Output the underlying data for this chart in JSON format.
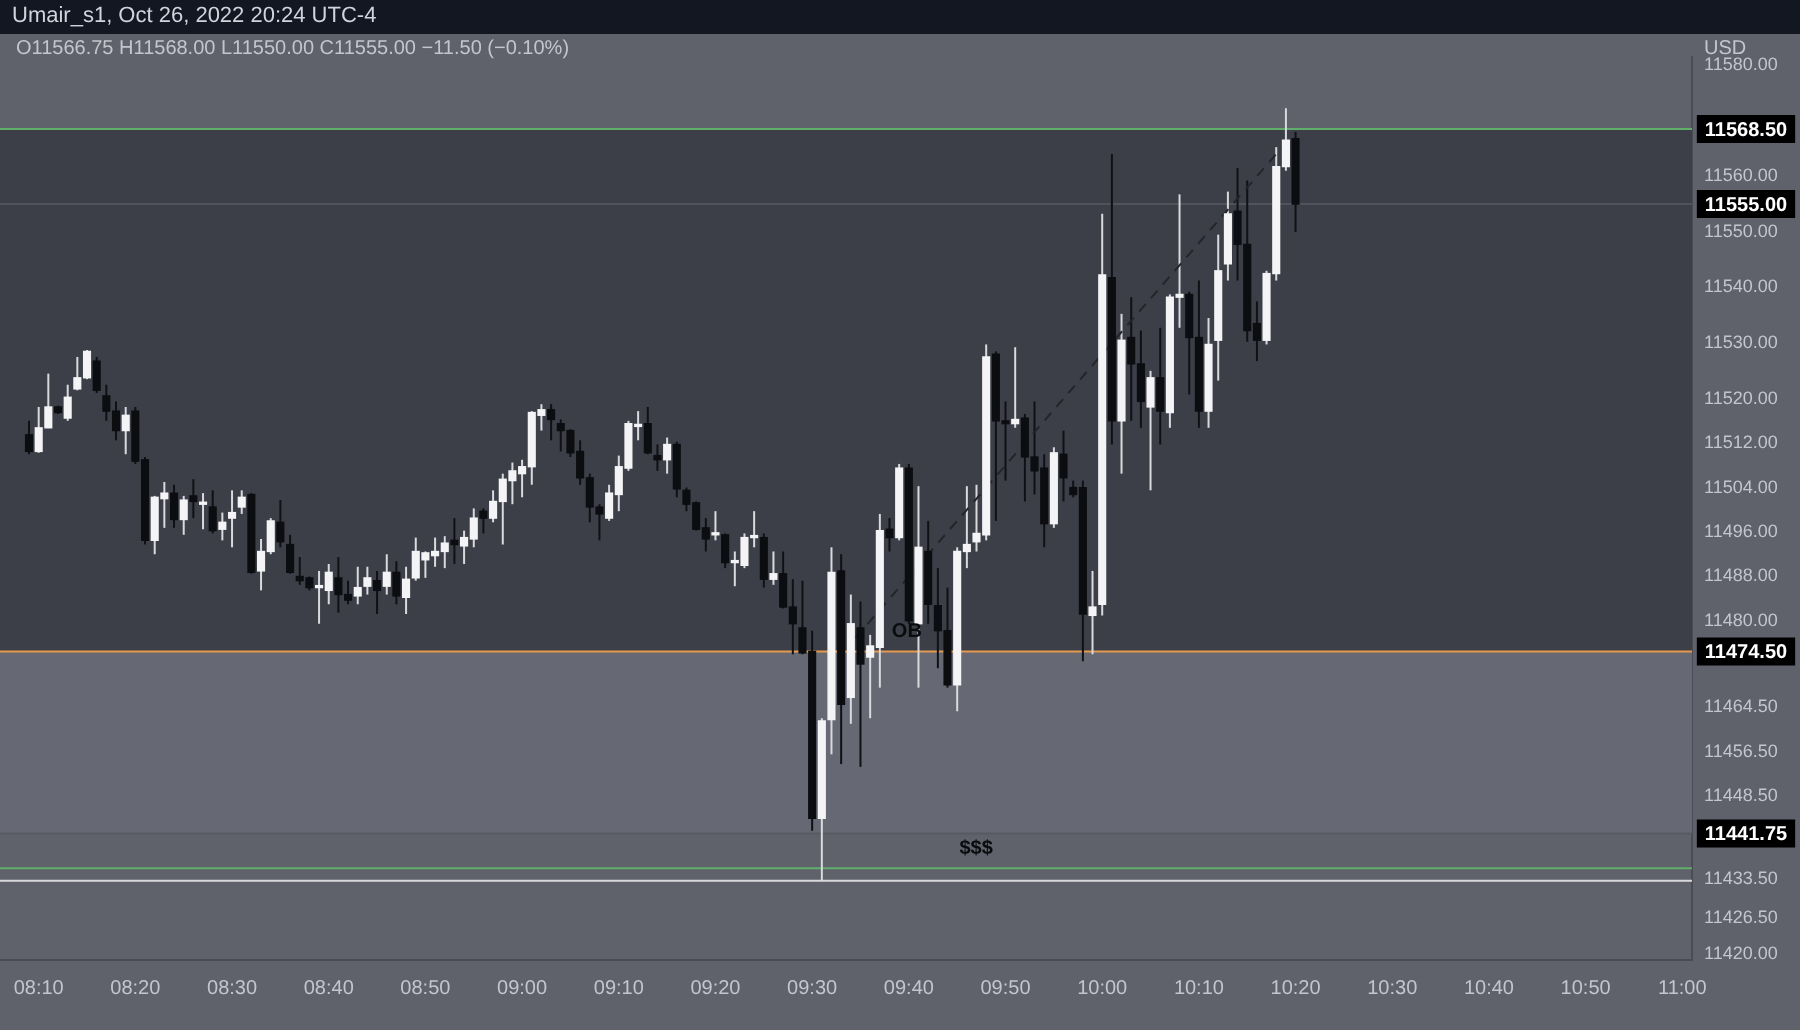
{
  "chart_data": {
    "type": "candlestick",
    "title": "Umair_s1, Oct 26, 2022 20:24 UTC-4",
    "subtitle": "O11566.75 H11568.00 L11550.00 C11555.00 −11.50 (−0.10%)",
    "ylabel": "USD",
    "x": [
      8.15,
      8.1667,
      8.1833,
      8.2,
      8.2167,
      8.2333,
      8.25,
      8.2667,
      8.2833,
      8.3,
      8.3167,
      8.3333,
      8.35,
      8.3667,
      8.3833,
      8.4,
      8.4167,
      8.4333,
      8.45,
      8.4667,
      8.4833,
      8.5,
      8.5167,
      8.5333,
      8.55,
      8.5667,
      8.5833,
      8.6,
      8.6167,
      8.6333,
      8.65,
      8.6667,
      8.6833,
      8.7,
      8.7167,
      8.7333,
      8.75,
      8.7667,
      8.7833,
      8.8,
      8.8167,
      8.8333,
      8.85,
      8.8667,
      8.8833,
      8.9,
      8.9167,
      8.9333,
      8.95,
      8.9667,
      8.9833,
      9,
      9.0167,
      9.0333,
      9.05,
      9.0667,
      9.0833,
      9.1,
      9.1167,
      9.1333,
      9.15,
      9.1667,
      9.1833,
      9.2,
      9.2167,
      9.2333,
      9.25,
      9.2667,
      9.2833,
      9.3,
      9.3167,
      9.3333,
      9.35,
      9.3667,
      9.3833,
      9.4,
      9.4167,
      9.4333,
      9.45,
      9.4667,
      9.4833,
      9.5,
      9.5167,
      9.5333,
      9.55,
      9.5667,
      9.5833,
      9.6,
      9.6167,
      9.6333,
      9.65,
      9.6667,
      9.6833,
      9.7,
      9.7167,
      9.7333,
      9.75,
      9.7667,
      9.7833,
      9.8,
      9.8167,
      9.8333,
      9.85,
      9.8667,
      9.8833,
      9.9,
      9.9167,
      9.9333,
      9.95,
      9.9667,
      9.9833,
      10,
      10.0167,
      10.0333,
      10.05,
      10.0667,
      10.0833,
      10.1,
      10.1167,
      10.1333,
      10.15,
      10.1667,
      10.1833,
      10.2,
      10.2167,
      10.2333,
      10.25,
      10.2667,
      10.2833,
      10.3,
      10.3167,
      10.3333
    ],
    "ohlc": [
      [
        11513.5,
        11516,
        11510,
        11510.5
      ],
      [
        11510.5,
        11518.5,
        11510.25,
        11514.75
      ],
      [
        11514.75,
        11524.5,
        11514.75,
        11518.5
      ],
      [
        11518.5,
        11518.75,
        11517.25,
        11517.5
      ],
      [
        11516.5,
        11522.5,
        11516,
        11520.25
      ],
      [
        11521.75,
        11527.5,
        11521.5,
        11523.75
      ],
      [
        11523.75,
        11528.75,
        11523.5,
        11528.5
      ],
      [
        11526.75,
        11527.5,
        11521,
        11521.5
      ],
      [
        11520.5,
        11522.5,
        11516,
        11517.75
      ],
      [
        11517.75,
        11519.5,
        11512.5,
        11514.25
      ],
      [
        11514.25,
        11518.5,
        11510,
        11517
      ],
      [
        11517.75,
        11518.5,
        11508.25,
        11508.75
      ],
      [
        11509,
        11509.5,
        11493.75,
        11494.5
      ],
      [
        11494.5,
        11502.5,
        11492,
        11502.25
      ],
      [
        11502,
        11505,
        11496.75,
        11503
      ],
      [
        11503,
        11504.5,
        11496.75,
        11498.25
      ],
      [
        11498.25,
        11502.5,
        11495.5,
        11501.75
      ],
      [
        11502.5,
        11505.5,
        11498.5,
        11501.5
      ],
      [
        11501,
        11503,
        11496.5,
        11501
      ],
      [
        11500.5,
        11503.5,
        11495.75,
        11496.25
      ],
      [
        11496.5,
        11499.5,
        11494.5,
        11497.75
      ],
      [
        11498.5,
        11503.5,
        11493.25,
        11499.5
      ],
      [
        11500.5,
        11503.5,
        11499.25,
        11502.25
      ],
      [
        11502.75,
        11503,
        11488.5,
        11488.75
      ],
      [
        11489,
        11494.75,
        11485.5,
        11492.5
      ],
      [
        11492.5,
        11498.5,
        11492,
        11498
      ],
      [
        11497.75,
        11501.75,
        11493.25,
        11494.25
      ],
      [
        11493.75,
        11495.5,
        11488.5,
        11488.75
      ],
      [
        11488,
        11491.5,
        11486.5,
        11487.25
      ],
      [
        11487.75,
        11488,
        11485.5,
        11486
      ],
      [
        11486,
        11489,
        11479.5,
        11486
      ],
      [
        11485.5,
        11490.25,
        11483,
        11488.75
      ],
      [
        11487.75,
        11491.5,
        11481.5,
        11484.75
      ],
      [
        11484.75,
        11487.25,
        11483,
        11483.75
      ],
      [
        11484.5,
        11489.75,
        11483,
        11486
      ],
      [
        11486.25,
        11489.75,
        11484.75,
        11487.75
      ],
      [
        11487.25,
        11489,
        11481.25,
        11485.5
      ],
      [
        11486.25,
        11492,
        11484.75,
        11488.75
      ],
      [
        11488.75,
        11490.75,
        11483,
        11484.5
      ],
      [
        11484.25,
        11489.75,
        11481.25,
        11487.5
      ],
      [
        11487.75,
        11495,
        11487.25,
        11492.5
      ],
      [
        11491,
        11492.5,
        11487.75,
        11492.25
      ],
      [
        11491.75,
        11495,
        11489.75,
        11492.5
      ],
      [
        11492.5,
        11495.25,
        11489.5,
        11494
      ],
      [
        11494.5,
        11498.5,
        11490.25,
        11493.75
      ],
      [
        11493.5,
        11496.25,
        11490.25,
        11495
      ],
      [
        11494.75,
        11500.25,
        11493.25,
        11498.5
      ],
      [
        11499.75,
        11500.25,
        11495.75,
        11498.5
      ],
      [
        11498.5,
        11503.5,
        11497.75,
        11501.5
      ],
      [
        11501.5,
        11506.5,
        11493.75,
        11505.5
      ],
      [
        11505.25,
        11508.5,
        11501,
        11507
      ],
      [
        11506.5,
        11509,
        11502.25,
        11507.75
      ],
      [
        11507.75,
        11517.75,
        11504.5,
        11517.5
      ],
      [
        11517,
        11519,
        11514.25,
        11518
      ],
      [
        11518,
        11519,
        11512.5,
        11516.25
      ],
      [
        11515.5,
        11516.25,
        11510.5,
        11514.25
      ],
      [
        11514.25,
        11514.5,
        11509.5,
        11510.25
      ],
      [
        11510.5,
        11512.5,
        11504.5,
        11505.75
      ],
      [
        11505.75,
        11506.5,
        11497.75,
        11500.5
      ],
      [
        11500.5,
        11501,
        11494.5,
        11499.25
      ],
      [
        11498.5,
        11504.5,
        11498,
        11503
      ],
      [
        11502.75,
        11509.75,
        11499.75,
        11507.75
      ],
      [
        11507.5,
        11516,
        11507,
        11515.5
      ],
      [
        11515,
        11517.75,
        11512.5,
        11515
      ],
      [
        11515.5,
        11518.5,
        11510,
        11510.25
      ],
      [
        11509.75,
        11511.75,
        11507,
        11509
      ],
      [
        11509,
        11513,
        11506.5,
        11511.75
      ],
      [
        11511.75,
        11512.25,
        11502.25,
        11503.75
      ],
      [
        11503.5,
        11504,
        11499.75,
        11501
      ],
      [
        11501.25,
        11501.5,
        11496.25,
        11496.5
      ],
      [
        11496.75,
        11498.5,
        11492.5,
        11494.75
      ],
      [
        11495.5,
        11499.75,
        11494.5,
        11495.5
      ],
      [
        11495.5,
        11495.75,
        11489.5,
        11490.5
      ],
      [
        11490.5,
        11492.5,
        11486.25,
        11490.5
      ],
      [
        11490,
        11495.75,
        11489.5,
        11495
      ],
      [
        11495,
        11499.75,
        11493.25,
        11495
      ],
      [
        11495,
        11495.75,
        11486,
        11487.5
      ],
      [
        11487.5,
        11492.5,
        11486.5,
        11488.5
      ],
      [
        11488.5,
        11492.5,
        11482.25,
        11482.5
      ],
      [
        11482.5,
        11487.5,
        11474,
        11479.5
      ],
      [
        11478.75,
        11487.25,
        11474,
        11474.25
      ],
      [
        11474.5,
        11478.25,
        11442.25,
        11444.5
      ],
      [
        11444.5,
        11462.5,
        11433.25,
        11462
      ],
      [
        11462.25,
        11493.25,
        11456,
        11488.75
      ],
      [
        11489,
        11492,
        11454.25,
        11465
      ],
      [
        11466.25,
        11484.75,
        11461.5,
        11479.5
      ],
      [
        11478.75,
        11483.5,
        11453.75,
        11472.25
      ],
      [
        11473.5,
        11477.5,
        11462.5,
        11475.5
      ],
      [
        11475.25,
        11499.25,
        11468,
        11496.25
      ],
      [
        11496.5,
        11498.5,
        11492.5,
        11495
      ],
      [
        11495,
        11508.25,
        11494.5,
        11507.5
      ],
      [
        11507.5,
        11508.25,
        11479.5,
        11480
      ],
      [
        11479.5,
        11504.25,
        11468,
        11493.25
      ],
      [
        11492.5,
        11498,
        11479.5,
        11483
      ],
      [
        11482.75,
        11489.5,
        11471.5,
        11478.25
      ],
      [
        11478.25,
        11486,
        11468,
        11468.5
      ],
      [
        11468.5,
        11493.25,
        11463.75,
        11492.5
      ],
      [
        11492.5,
        11504.25,
        11489.5,
        11493.75
      ],
      [
        11494.25,
        11504.5,
        11492.5,
        11495.75
      ],
      [
        11495.5,
        11529.75,
        11494.5,
        11527.5
      ],
      [
        11528,
        11528.5,
        11498,
        11516
      ],
      [
        11516,
        11519.5,
        11505.25,
        11515.5
      ],
      [
        11515.5,
        11529.25,
        11514.75,
        11516.25
      ],
      [
        11516.5,
        11517.25,
        11501.5,
        11509.5
      ],
      [
        11509.5,
        11519.5,
        11502.75,
        11507
      ],
      [
        11507.5,
        11510,
        11493.25,
        11497.5
      ],
      [
        11497.5,
        11511.25,
        11496.75,
        11510.25
      ],
      [
        11510,
        11514.25,
        11501.5,
        11505.75
      ],
      [
        11504,
        11505.25,
        11502.25,
        11502.75
      ],
      [
        11504,
        11505.25,
        11472.75,
        11481.25
      ],
      [
        11481,
        11489,
        11474,
        11482.5
      ],
      [
        11483,
        11553.25,
        11481,
        11542.25
      ],
      [
        11541.75,
        11564,
        11511.75,
        11516
      ],
      [
        11516,
        11535.25,
        11506.5,
        11530.5
      ],
      [
        11531,
        11538.25,
        11516,
        11526.25
      ],
      [
        11526.25,
        11532.25,
        11514.75,
        11519.5
      ],
      [
        11518.5,
        11525,
        11503.5,
        11523.75
      ],
      [
        11523.75,
        11532.75,
        11511.75,
        11517.75
      ],
      [
        11517.5,
        11538.75,
        11514.75,
        11538.25
      ],
      [
        11538.25,
        11556.75,
        11532.75,
        11538.75
      ],
      [
        11538.75,
        11539.25,
        11520.75,
        11531
      ],
      [
        11531,
        11541.25,
        11514.75,
        11517.75
      ],
      [
        11517.75,
        11534.5,
        11514.75,
        11529.75
      ],
      [
        11530.5,
        11549.5,
        11523.25,
        11543
      ],
      [
        11544.25,
        11557.25,
        11541.25,
        11553.25
      ],
      [
        11553.75,
        11561.5,
        11541.25,
        11547.75
      ],
      [
        11547.75,
        11559.25,
        11530.25,
        11532.25
      ],
      [
        11533.5,
        11537.5,
        11526.75,
        11530.5
      ],
      [
        11530.5,
        11543,
        11529.75,
        11542.5
      ],
      [
        11542.5,
        11565.25,
        11541.25,
        11561.75
      ],
      [
        11561.75,
        11572.25,
        11561,
        11566.5
      ],
      [
        11566.75,
        11568,
        11550,
        11555
      ]
    ],
    "series": [
      {
        "type": "line",
        "x": [
          9.575,
          10.3083
        ],
        "values": [
          11477,
          11565
        ],
        "color": "#23252b",
        "line_style": "dashed"
      }
    ],
    "xlim": [
      8.1,
      11.0167
    ],
    "xticks": [
      {
        "value": 8.1667,
        "label": "08:10"
      },
      {
        "value": 8.3333,
        "label": "08:20"
      },
      {
        "value": 8.5,
        "label": "08:30"
      },
      {
        "value": 8.6667,
        "label": "08:40"
      },
      {
        "value": 8.8333,
        "label": "08:50"
      },
      {
        "value": 9,
        "label": "09:00"
      },
      {
        "value": 9.1667,
        "label": "09:10"
      },
      {
        "value": 9.3333,
        "label": "09:20"
      },
      {
        "value": 9.5,
        "label": "09:30"
      },
      {
        "value": 9.6667,
        "label": "09:40"
      },
      {
        "value": 9.8333,
        "label": "09:50"
      },
      {
        "value": 10,
        "label": "10:00"
      },
      {
        "value": 10.1667,
        "label": "10:10"
      },
      {
        "value": 10.3333,
        "label": "10:20"
      },
      {
        "value": 10.5,
        "label": "10:30"
      },
      {
        "value": 10.6667,
        "label": "10:40"
      },
      {
        "value": 10.8333,
        "label": "10:50"
      },
      {
        "value": 11,
        "label": "11:00"
      }
    ],
    "ylim": [
      11419,
      11581.5
    ],
    "yticks": [
      {
        "value": 11420,
        "label": "11420.00"
      },
      {
        "value": 11426.5,
        "label": "11426.50"
      },
      {
        "value": 11433.5,
        "label": "11433.50"
      },
      {
        "value": 11448.5,
        "label": "11448.50"
      },
      {
        "value": 11456.5,
        "label": "11456.50"
      },
      {
        "value": 11464.5,
        "label": "11464.50"
      },
      {
        "value": 11480,
        "label": "11480.00"
      },
      {
        "value": 11488,
        "label": "11488.00"
      },
      {
        "value": 11496,
        "label": "11496.00"
      },
      {
        "value": 11504,
        "label": "11504.00"
      },
      {
        "value": 11512,
        "label": "11512.00"
      },
      {
        "value": 11520,
        "label": "11520.00"
      },
      {
        "value": 11530,
        "label": "11530.00"
      },
      {
        "value": 11540,
        "label": "11540.00"
      },
      {
        "value": 11550,
        "label": "11550.00"
      },
      {
        "value": 11560,
        "label": "11560.00"
      },
      {
        "value": 11580,
        "label": "11580.00"
      }
    ],
    "bands": [
      {
        "axis": "y",
        "from": 11474.5,
        "to": 11568.5,
        "label": null,
        "color": "#3c3f48"
      },
      {
        "axis": "y",
        "from": 11441.75,
        "to": 11474.5,
        "label": null,
        "color": "#666974"
      }
    ],
    "ref_lines": [
      {
        "axis": "y",
        "value": 11568.5,
        "label": "11568.50",
        "color": "#5fae6a"
      },
      {
        "axis": "y",
        "value": 11555,
        "label": "11555.00",
        "color": "#50535c"
      },
      {
        "axis": "y",
        "value": 11474.5,
        "label": "11474.50",
        "color": "#e59a4e"
      },
      {
        "axis": "y",
        "value": 11441.75,
        "label": "11441.75",
        "color": "#575a63"
      },
      {
        "axis": "y",
        "value": 11435.5,
        "label": null,
        "color": "#5fae6a"
      },
      {
        "axis": "y",
        "value": 11433.25,
        "label": null,
        "color": "#d8d8dc"
      }
    ],
    "annotations": [
      {
        "text": "OB",
        "x": 9.6167,
        "y": 11474.5
      },
      {
        "text": "$$$",
        "x": 9.7333,
        "y": 11435.5
      }
    ]
  }
}
